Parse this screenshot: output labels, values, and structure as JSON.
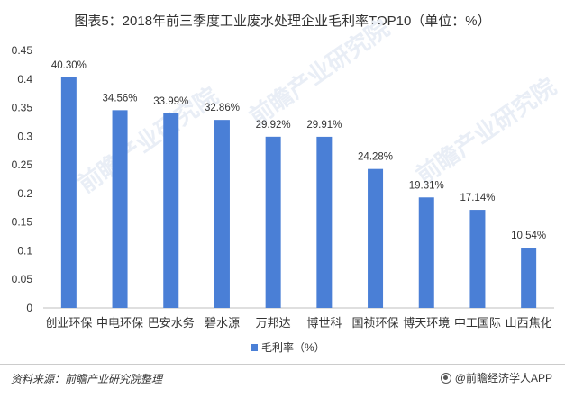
{
  "title": "图表5：2018年前三季度工业废水处理企业毛利率TOP10（单位：%）",
  "source": "资料来源：前瞻产业研究院整理",
  "brand": "@前瞻经济学人APP",
  "watermark": "前瞻产业研究院",
  "colors": {
    "bar": "#4a7fd6",
    "axis": "#bfbfbf",
    "text": "#333333",
    "watermark": "#e9eef6"
  },
  "chart_data": {
    "type": "bar",
    "categories": [
      "创业环保",
      "中电环保",
      "巴安水务",
      "碧水源",
      "万邦达",
      "博世科",
      "国祯环保",
      "博天环境",
      "中工国际",
      "山西焦化"
    ],
    "series": [
      {
        "name": "毛利率（%）",
        "values": [
          0.403,
          0.3456,
          0.3399,
          0.3286,
          0.2992,
          0.2991,
          0.2428,
          0.1931,
          0.1714,
          0.1054
        ],
        "labels": [
          "40.30%",
          "34.56%",
          "33.99%",
          "32.86%",
          "29.92%",
          "29.91%",
          "24.28%",
          "19.31%",
          "17.14%",
          "10.54%"
        ]
      }
    ],
    "ylim": [
      0,
      0.45
    ],
    "yticks": [
      0,
      0.05,
      0.1,
      0.15,
      0.2,
      0.25,
      0.3,
      0.35,
      0.4,
      0.45
    ],
    "ytick_labels": [
      "0",
      "0.05",
      "0.1",
      "0.15",
      "0.2",
      "0.25",
      "0.3",
      "0.35",
      "0.4",
      "0.45"
    ],
    "grid": false,
    "legend": {
      "position": "bottom",
      "label": "毛利率（%）"
    }
  }
}
